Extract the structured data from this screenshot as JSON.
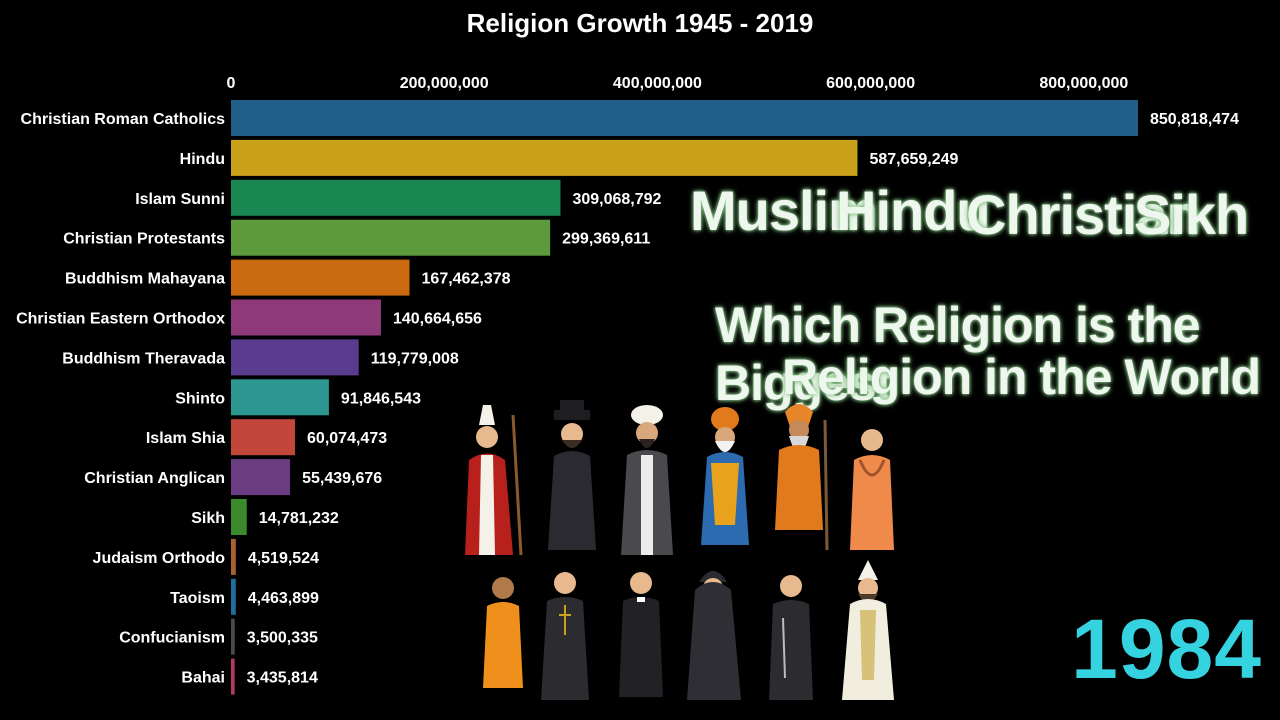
{
  "chart_data": {
    "type": "bar",
    "orientation": "horizontal",
    "title": "Religion Growth 1945 - 2019",
    "year": "1984",
    "xlim": [
      0,
      850818474
    ],
    "x_ticks": [
      0,
      200000000,
      400000000,
      600000000,
      800000000
    ],
    "x_tick_labels": [
      "0",
      "200,000,000",
      "400,000,000",
      "600,000,000",
      "800,000,000"
    ],
    "categories": [
      "Christian Roman Catholics",
      "Hindu",
      "Islam Sunni",
      "Christian Protestants",
      "Buddhism Mahayana",
      "Christian Eastern Orthodox",
      "Buddhism Theravada",
      "Shinto",
      "Islam Shia",
      "Christian Anglican",
      "Sikh",
      "Judaism Orthodo",
      "Taoism",
      "Confucianism",
      "Bahai"
    ],
    "values": [
      850818474,
      587659249,
      309068792,
      299369611,
      167462378,
      140664656,
      119779008,
      91846543,
      60074473,
      55439676,
      14781232,
      4519524,
      4463899,
      3500335,
      3435814
    ],
    "value_labels": [
      "850,818,474",
      "587,659,249",
      "309,068,792",
      "299,369,611",
      "167,462,378",
      "140,664,656",
      "119,779,008",
      "91,846,543",
      "60,074,473",
      "55,439,676",
      "14,781,232",
      "4,519,524",
      "4,463,899",
      "3,500,335",
      "3,435,814"
    ],
    "colors": [
      "#1f5f8a",
      "#c9a21a",
      "#1a8753",
      "#5d9a3c",
      "#c96a10",
      "#8e3a7a",
      "#5a3c8e",
      "#2c9690",
      "#c2473a",
      "#6a3d82",
      "#3b8a2e",
      "#a9622f",
      "#1d6f9e",
      "#4a4a4a",
      "#b23a5e"
    ],
    "grid": false,
    "legend": "none"
  },
  "overlay": {
    "religions_line": [
      "Muslim",
      "Hindu",
      "Christian",
      "Sikh"
    ],
    "headline_1": "Which Religion is the Biggest",
    "headline_2": "Religion in the World"
  },
  "figure_icons": [
    "pope-figure-icon",
    "rabbi-figure-icon",
    "imam-figure-icon",
    "sikh-figure-icon",
    "sadhu-figure-icon",
    "hindu-monk-figure-icon",
    "buddhist-monk-figure-icon",
    "priest-figure-icon",
    "pastor-figure-icon",
    "orthodox-monk-figure-icon",
    "friar-figure-icon",
    "bishop-figure-icon"
  ]
}
